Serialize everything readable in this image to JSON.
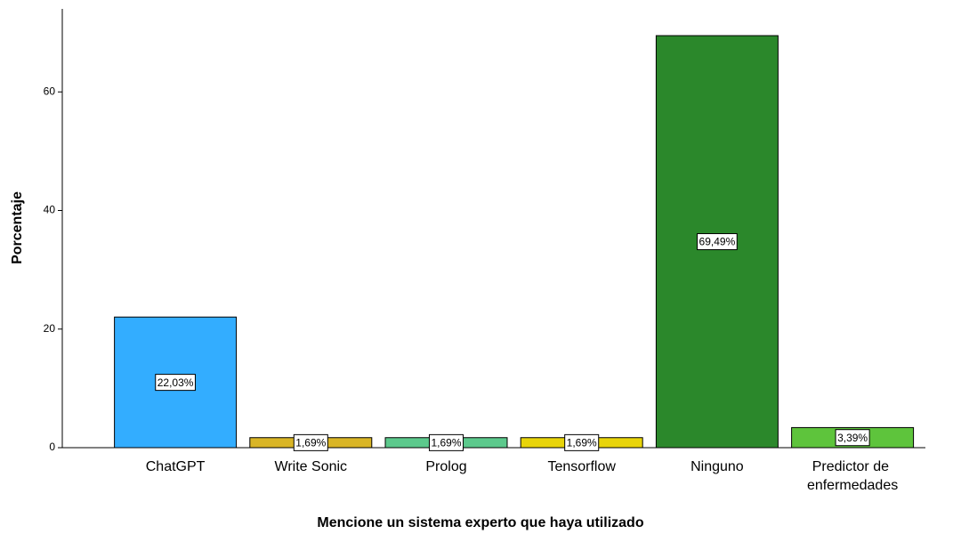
{
  "chart_data": {
    "type": "bar",
    "x_label": "Mencione un sistema experto que haya utilizado",
    "y_label": "Porcentaje",
    "categories": [
      "ChatGPT",
      "Write Sonic",
      "Prolog",
      "Tensorflow",
      "Ninguno",
      "Predictor de enfermedades"
    ],
    "values": [
      22.03,
      1.69,
      1.69,
      1.69,
      69.49,
      3.39
    ],
    "value_labels": [
      "22,03%",
      "1,69%",
      "1,69%",
      "1,69%",
      "69,49%",
      "3,39%"
    ],
    "colors": [
      "#33adff",
      "#d9b526",
      "#5cc98c",
      "#e8d40a",
      "#2b882b",
      "#5ec43c"
    ],
    "ylim": [
      0,
      74
    ],
    "yticks": [
      0,
      20,
      40,
      60
    ],
    "grid": false
  }
}
